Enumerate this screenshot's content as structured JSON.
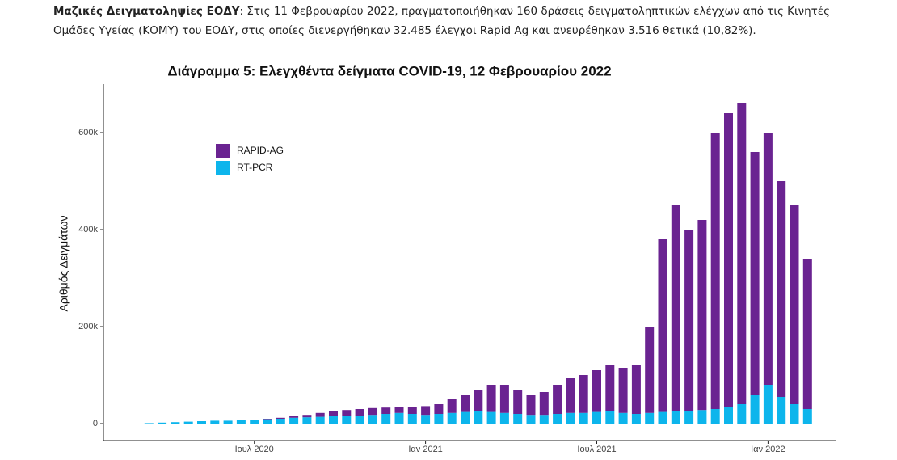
{
  "paragraph": {
    "lead": "Μαζικές Δειγματοληψίες ΕΟΔΥ",
    "text": ": Στις 11 Φεβρουαρίου 2022, πραγματοποιήθηκαν 160 δράσεις δειγματοληπτικών ελέγχων από τις Κινητές Ομάδες Υγείας (ΚΟΜΥ) του ΕΟΔΥ, στις οποίες διενεργήθηκαν 32.485 έλεγχοι Rapid Ag και ανευρέθηκαν 3.516 θετικά (10,82%)."
  },
  "chart_data": {
    "type": "bar",
    "stacked": true,
    "title": "Διάγραμμα 5: Ελεγχθέντα δείγματα COVID-19, 12 Φεβρουαρίου 2022",
    "ylabel": "Αριθμός Δειγμάτων",
    "categories": [
      null,
      null,
      null,
      null,
      null,
      null,
      null,
      null,
      null,
      "Ιουλ 2020",
      null,
      null,
      null,
      null,
      null,
      null,
      null,
      null,
      null,
      null,
      null,
      null,
      "Ιαν 2021",
      null,
      null,
      null,
      null,
      null,
      null,
      null,
      null,
      null,
      null,
      null,
      null,
      "Ιουλ 2021",
      null,
      null,
      null,
      null,
      null,
      null,
      null,
      null,
      null,
      null,
      null,
      null,
      "Ιαν 2022",
      null,
      null,
      null
    ],
    "series": [
      {
        "name": "RT-PCR",
        "color": "#0db5ec",
        "values": [
          0,
          1000,
          2000,
          3000,
          4000,
          5000,
          6000,
          6000,
          7000,
          8000,
          9000,
          10000,
          12000,
          13000,
          14000,
          15000,
          15000,
          16000,
          18000,
          20000,
          22000,
          20000,
          18000,
          20000,
          22000,
          24000,
          25000,
          24000,
          22000,
          20000,
          18000,
          18000,
          20000,
          22000,
          22000,
          24000,
          25000,
          22000,
          20000,
          22000,
          24000,
          25000,
          26000,
          28000,
          30000,
          35000,
          40000,
          60000,
          80000,
          55000,
          40000,
          30000
        ]
      },
      {
        "name": "RAPID-AG",
        "color": "#6a2391",
        "values": [
          0,
          0,
          0,
          0,
          0,
          0,
          0,
          0,
          0,
          0,
          1000,
          2000,
          3000,
          5000,
          8000,
          10000,
          13000,
          14000,
          14000,
          13000,
          12000,
          15000,
          18000,
          20000,
          28000,
          36000,
          45000,
          56000,
          58000,
          50000,
          42000,
          47000,
          60000,
          73000,
          78000,
          86000,
          95000,
          93000,
          100000,
          178000,
          356000,
          425000,
          374000,
          392000,
          570000,
          605000,
          620000,
          500000,
          520000,
          445000,
          410000,
          310000
        ]
      }
    ],
    "legend_order": [
      1,
      0
    ],
    "ylim": [
      -35000,
      700000
    ],
    "yticks": [
      {
        "value": 0,
        "label": "0"
      },
      {
        "value": 200000,
        "label": "200k"
      },
      {
        "value": 400000,
        "label": "400k"
      },
      {
        "value": 600000,
        "label": "600k"
      }
    ]
  }
}
